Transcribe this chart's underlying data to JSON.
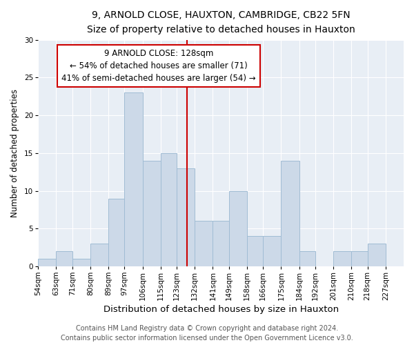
{
  "title1": "9, ARNOLD CLOSE, HAUXTON, CAMBRIDGE, CB22 5FN",
  "title2": "Size of property relative to detached houses in Hauxton",
  "xlabel": "Distribution of detached houses by size in Hauxton",
  "ylabel": "Number of detached properties",
  "categories": [
    "54sqm",
    "63sqm",
    "71sqm",
    "80sqm",
    "89sqm",
    "97sqm",
    "106sqm",
    "115sqm",
    "123sqm",
    "132sqm",
    "141sqm",
    "149sqm",
    "158sqm",
    "166sqm",
    "175sqm",
    "184sqm",
    "192sqm",
    "201sqm",
    "210sqm",
    "218sqm",
    "227sqm"
  ],
  "values": [
    1,
    2,
    1,
    3,
    9,
    23,
    14,
    15,
    13,
    6,
    6,
    10,
    4,
    4,
    14,
    2,
    0,
    2,
    2,
    3,
    0
  ],
  "bar_color": "#ccd9e8",
  "bar_edge_color": "#a0bcd4",
  "vline_x_index": 8.5,
  "bin_edges": [
    54,
    63,
    71,
    80,
    89,
    97,
    106,
    115,
    123,
    132,
    141,
    149,
    158,
    166,
    175,
    184,
    192,
    201,
    210,
    218,
    227,
    236
  ],
  "annotation_text": "9 ARNOLD CLOSE: 128sqm\n← 54% of detached houses are smaller (71)\n41% of semi-detached houses are larger (54) →",
  "annotation_box_color": "#ffffff",
  "annotation_edge_color": "#cc0000",
  "vline_color": "#cc0000",
  "footer1": "Contains HM Land Registry data © Crown copyright and database right 2024.",
  "footer2": "Contains public sector information licensed under the Open Government Licence v3.0.",
  "ylim": [
    0,
    30
  ],
  "yticks": [
    0,
    5,
    10,
    15,
    20,
    25,
    30
  ],
  "bg_color": "#e8eef5",
  "title1_fontsize": 10,
  "title2_fontsize": 9,
  "xlabel_fontsize": 9.5,
  "ylabel_fontsize": 8.5,
  "tick_fontsize": 7.5,
  "annotation_fontsize": 8.5,
  "footer_fontsize": 7
}
